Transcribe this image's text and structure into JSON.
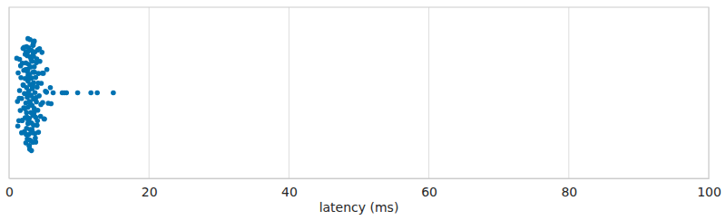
{
  "chart_data": {
    "type": "strip",
    "x_label": "latency (ms)",
    "color": "#0072b2",
    "grid": true,
    "tick_labels": "x",
    "xlim": [
      0,
      100
    ],
    "xticks": [
      0,
      20,
      40,
      60,
      80,
      100
    ],
    "values": [
      1.1,
      1.2,
      1.3,
      1.4,
      1.5,
      1.5,
      1.6,
      1.7,
      1.8,
      1.8,
      1.9,
      1.9,
      2.0,
      2.0,
      2.1,
      2.1,
      2.2,
      2.2,
      2.3,
      2.3,
      2.3,
      2.4,
      2.4,
      2.4,
      2.5,
      2.5,
      2.5,
      2.5,
      2.6,
      2.6,
      2.6,
      2.6,
      2.7,
      2.7,
      2.7,
      2.7,
      2.8,
      2.8,
      2.8,
      2.8,
      2.9,
      2.9,
      2.9,
      2.9,
      3.0,
      3.0,
      3.0,
      3.0,
      3.1,
      3.1,
      3.1,
      3.1,
      3.2,
      3.2,
      3.2,
      3.2,
      3.3,
      3.3,
      3.3,
      3.3,
      3.4,
      3.4,
      3.4,
      3.4,
      3.5,
      3.5,
      3.5,
      3.5,
      3.6,
      3.6,
      3.6,
      3.7,
      3.7,
      3.7,
      3.8,
      3.8,
      3.8,
      3.9,
      3.9,
      4.0,
      4.0,
      4.1,
      4.1,
      4.2,
      4.2,
      4.3,
      4.4,
      4.5,
      4.6,
      4.7,
      4.8,
      4.9,
      5.0,
      5.2,
      5.4,
      5.6,
      5.9,
      1.25,
      1.45,
      1.65,
      1.85,
      2.05,
      2.15,
      2.25,
      2.35,
      2.45,
      2.55,
      2.65,
      2.75,
      2.85,
      2.95,
      3.05,
      3.15,
      3.25,
      3.35,
      3.45,
      3.55,
      3.65,
      3.75,
      3.85,
      3.95,
      4.05,
      4.15,
      4.35,
      4.55,
      4.75,
      5.05,
      5.35,
      2.42,
      2.58,
      2.72,
      2.88,
      3.02,
      3.12,
      3.28,
      3.38,
      3.48,
      3.62,
      2.68,
      2.92,
      3.18,
      3.42,
      2.82,
      3.08,
      6.0,
      6.3,
      7.6,
      7.9,
      8.2,
      9.8,
      11.7,
      12.6,
      14.9
    ]
  }
}
